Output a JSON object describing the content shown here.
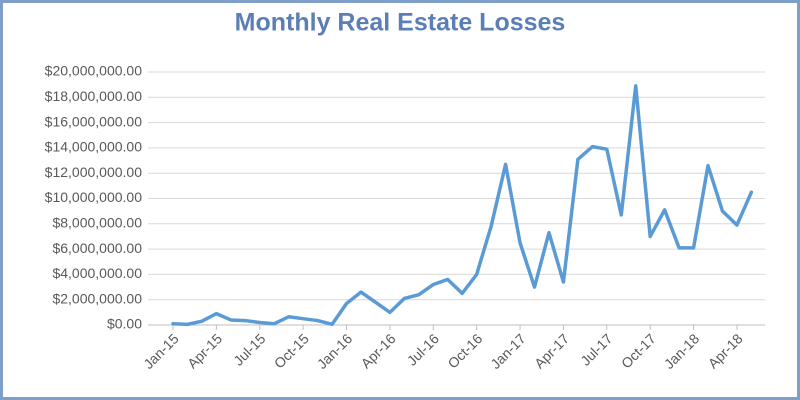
{
  "chart_data": {
    "type": "line",
    "title": "Monthly Real Estate Losses",
    "categories": [
      "Jan-15",
      null,
      null,
      "Apr-15",
      null,
      null,
      "Jul-15",
      null,
      null,
      "Oct-15",
      null,
      null,
      "Jan-16",
      null,
      null,
      "Apr-16",
      null,
      null,
      "Jul-16",
      null,
      null,
      "Oct-16",
      null,
      null,
      "Jan-17",
      null,
      null,
      "Apr-17",
      null,
      null,
      "Jul-17",
      null,
      null,
      "Oct-17",
      null,
      null,
      "Jan-18",
      null,
      null,
      "Apr-18",
      null
    ],
    "series": [
      {
        "name": "Losses",
        "color": "#5b9bd5",
        "values": [
          100000,
          50000,
          300000,
          900000,
          400000,
          350000,
          200000,
          100000,
          650000,
          500000,
          350000,
          50000,
          1700000,
          2600000,
          1800000,
          1000000,
          2100000,
          2400000,
          3200000,
          3600000,
          2500000,
          4000000,
          7800000,
          12700000,
          6500000,
          3000000,
          7300000,
          3400000,
          13100000,
          14100000,
          13900000,
          8700000,
          18900000,
          7000000,
          9100000,
          6100000,
          6100000,
          12600000,
          9000000,
          7900000,
          10500000
        ]
      }
    ],
    "ylim": [
      0,
      20000000
    ],
    "yticks": [
      {
        "value": 0,
        "label": "$0.00"
      },
      {
        "value": 2000000,
        "label": "$2,000,000.00"
      },
      {
        "value": 4000000,
        "label": "$4,000,000.00"
      },
      {
        "value": 6000000,
        "label": "$6,000,000.00"
      },
      {
        "value": 8000000,
        "label": "$8,000,000.00"
      },
      {
        "value": 10000000,
        "label": "$10,000,000.00"
      },
      {
        "value": 12000000,
        "label": "$12,000,000.00"
      },
      {
        "value": 14000000,
        "label": "$14,000,000.00"
      },
      {
        "value": 16000000,
        "label": "$16,000,000.00"
      },
      {
        "value": 18000000,
        "label": "$18,000,000.00"
      },
      {
        "value": 20000000,
        "label": "$20,000,000.00"
      }
    ],
    "grid": true
  }
}
